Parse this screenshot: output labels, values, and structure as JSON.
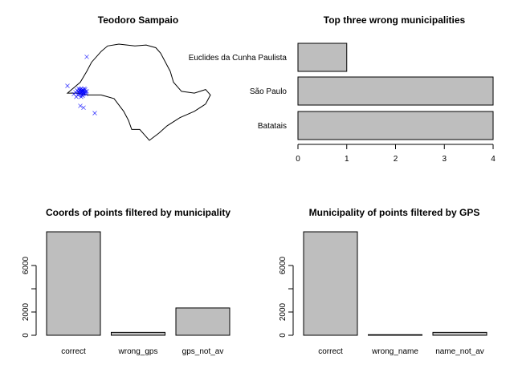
{
  "chart_data": [
    {
      "type": "scatter",
      "title": "Teodoro Sampaio",
      "legend": "none",
      "grid": false,
      "series": [
        {
          "color": "#0000ff",
          "marker": "x",
          "note_points": [
            [
              -52.2,
              -22.5
            ],
            [
              -52.2,
              -22.45
            ],
            [
              -52.15,
              -22.5
            ],
            [
              -52.1,
              -22.55
            ],
            [
              -52.25,
              -22.55
            ],
            [
              -52.3,
              -22.5
            ],
            [
              -52.2,
              -22.6
            ],
            [
              -52.1,
              -22.45
            ],
            [
              -52.0,
              -22.5
            ],
            [
              -52.05,
              -22.6
            ],
            [
              -52.35,
              -22.45
            ],
            [
              -52.3,
              -22.6
            ],
            [
              -52.15,
              -22.4
            ],
            [
              -52.4,
              -22.55
            ],
            [
              -52.0,
              -22.4
            ],
            [
              -52.25,
              -22.35
            ],
            [
              -52.45,
              -22.5
            ],
            [
              -52.1,
              -22.65
            ],
            [
              -51.95,
              -22.55
            ],
            [
              -52.2,
              -22.7
            ],
            [
              -52.35,
              -22.65
            ],
            [
              -52.5,
              -22.45
            ],
            [
              -52.05,
              -22.35
            ],
            [
              -52.3,
              -22.4
            ],
            [
              -51.9,
              -22.5
            ],
            [
              -52.4,
              -22.35
            ],
            [
              -52.15,
              -22.75
            ],
            [
              -52.6,
              -22.55
            ],
            [
              -51.95,
              -22.65
            ],
            [
              -52.25,
              -22.8
            ],
            [
              -52.7,
              -22.65
            ],
            [
              -52.45,
              -22.7
            ],
            [
              -52.55,
              -22.8
            ],
            [
              -51.9,
              -20.6
            ],
            [
              -53.1,
              -22.2
            ],
            [
              -52.3,
              -23.3
            ],
            [
              -52.1,
              -23.4
            ],
            [
              -51.4,
              -23.7
            ]
          ]
        }
      ],
      "map_outline": [
        [
          -53.1,
          -22.6
        ],
        [
          -52.3,
          -22.0
        ],
        [
          -51.9,
          -21.4
        ],
        [
          -51.6,
          -20.9
        ],
        [
          -51.0,
          -20.3
        ],
        [
          -50.6,
          -20.0
        ],
        [
          -49.9,
          -19.9
        ],
        [
          -48.9,
          -20.0
        ],
        [
          -48.2,
          -19.95
        ],
        [
          -47.6,
          -20.1
        ],
        [
          -47.3,
          -20.4
        ],
        [
          -47.0,
          -20.9
        ],
        [
          -46.7,
          -21.4
        ],
        [
          -46.5,
          -22.0
        ],
        [
          -46.0,
          -22.5
        ],
        [
          -45.2,
          -22.6
        ],
        [
          -44.5,
          -22.4
        ],
        [
          -44.2,
          -22.7
        ],
        [
          -44.5,
          -23.2
        ],
        [
          -45.2,
          -23.6
        ],
        [
          -46.1,
          -23.95
        ],
        [
          -46.9,
          -24.4
        ],
        [
          -47.4,
          -24.8
        ],
        [
          -48.0,
          -25.2
        ],
        [
          -48.3,
          -24.9
        ],
        [
          -48.6,
          -24.6
        ],
        [
          -49.1,
          -24.6
        ],
        [
          -49.3,
          -24.1
        ],
        [
          -49.6,
          -23.6
        ],
        [
          -50.2,
          -22.9
        ],
        [
          -51.0,
          -22.7
        ],
        [
          -51.8,
          -22.7
        ],
        [
          -52.5,
          -22.6
        ],
        [
          -53.1,
          -22.6
        ]
      ]
    },
    {
      "type": "bar",
      "orientation": "horizontal",
      "title": "Top three wrong municipalities",
      "categories": [
        "Batatais",
        "São Paulo",
        "Euclides da Cunha Paulista"
      ],
      "values": [
        4,
        4,
        1
      ],
      "xlim": [
        0,
        4
      ],
      "xticks": [
        "0",
        "1",
        "2",
        "3",
        "4"
      ],
      "color": "#bebebe"
    },
    {
      "type": "bar",
      "title": "Coords of points filtered by municipality",
      "categories": [
        "correct",
        "wrong_gps",
        "gps_not_av"
      ],
      "values": [
        8900,
        250,
        2350
      ],
      "ylim": [
        0,
        8900
      ],
      "yticks": [
        "0",
        "2000",
        "6000"
      ],
      "ytick_values": [
        0,
        2000,
        6000
      ],
      "color": "#bebebe"
    },
    {
      "type": "bar",
      "title": "Municipality of points filtered by GPS",
      "categories": [
        "correct",
        "wrong_name",
        "name_not_av"
      ],
      "values": [
        8900,
        50,
        250
      ],
      "ylim": [
        0,
        8900
      ],
      "yticks": [
        "0",
        "2000",
        "6000"
      ],
      "ytick_values": [
        0,
        2000,
        6000
      ],
      "color": "#bebebe"
    }
  ]
}
